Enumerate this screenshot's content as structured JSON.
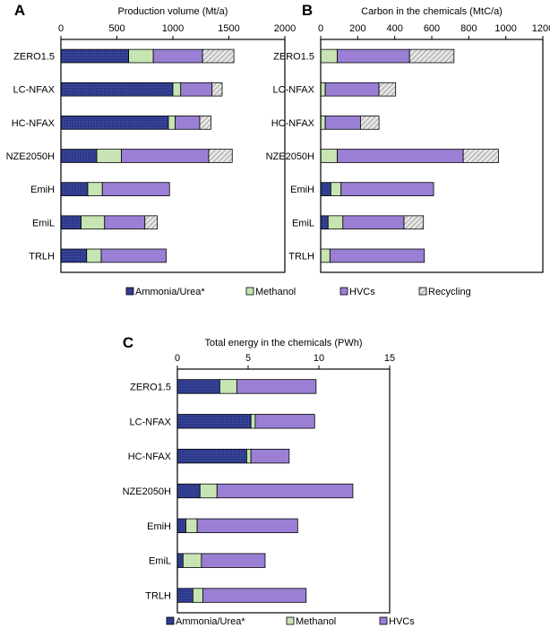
{
  "colors": {
    "ammonia": "#2e3a8c",
    "methanol": "#c6e5b3",
    "hvcs": "#9b7fd4",
    "recycling": "#d9d9d9"
  },
  "legend": [
    {
      "key": "ammonia",
      "label": "Ammonia/Urea*"
    },
    {
      "key": "methanol",
      "label": "Methanol"
    },
    {
      "key": "hvcs",
      "label": "HVCs"
    },
    {
      "key": "recycling",
      "label": "Recycling"
    }
  ],
  "chart_data": [
    {
      "panel": "A",
      "type": "bar",
      "orientation": "horizontal",
      "stacked": true,
      "title": "Production volume (Mt/a)",
      "xlim": [
        0,
        2000
      ],
      "xticks": [
        0,
        500,
        1000,
        1500,
        2000
      ],
      "categories": [
        "ZERO1.5",
        "LC-NFAX",
        "HC-NFAX",
        "NZE2050H",
        "EmiH",
        "EmiL",
        "TRLH"
      ],
      "series": [
        {
          "name": "Ammonia/Urea*",
          "key": "ammonia",
          "values": [
            605,
            1000,
            960,
            320,
            240,
            180,
            230
          ]
        },
        {
          "name": "Methanol",
          "key": "methanol",
          "values": [
            220,
            70,
            60,
            220,
            130,
            210,
            130
          ]
        },
        {
          "name": "HVCs",
          "key": "hvcs",
          "values": [
            440,
            280,
            220,
            780,
            600,
            360,
            580
          ]
        },
        {
          "name": "Recycling",
          "key": "recycling",
          "values": [
            280,
            90,
            100,
            210,
            0,
            110,
            0
          ]
        }
      ]
    },
    {
      "panel": "B",
      "type": "bar",
      "orientation": "horizontal",
      "stacked": true,
      "title": "Carbon in the chemicals (MtC/a)",
      "xlim": [
        0,
        1200
      ],
      "xticks": [
        0,
        200,
        400,
        600,
        800,
        1000,
        1200
      ],
      "categories": [
        "ZERO1.5",
        "LC-NFAX",
        "HC-NFAX",
        "NZE2050H",
        "EmiH",
        "EmiL",
        "TRLH"
      ],
      "series": [
        {
          "name": "Ammonia/Urea*",
          "key": "ammonia",
          "values": [
            0,
            0,
            0,
            0,
            55,
            40,
            0
          ]
        },
        {
          "name": "Methanol",
          "key": "methanol",
          "values": [
            90,
            25,
            25,
            90,
            55,
            80,
            50
          ]
        },
        {
          "name": "HVCs",
          "key": "hvcs",
          "values": [
            390,
            290,
            190,
            680,
            500,
            330,
            510
          ]
        },
        {
          "name": "Recycling",
          "key": "recycling",
          "values": [
            240,
            90,
            100,
            190,
            0,
            105,
            0
          ]
        }
      ]
    },
    {
      "panel": "C",
      "type": "bar",
      "orientation": "horizontal",
      "stacked": true,
      "title": "Total energy in the chemicals (PWh)",
      "xlim": [
        0,
        15
      ],
      "xticks": [
        0,
        5,
        10,
        15
      ],
      "categories": [
        "ZERO1.5",
        "LC-NFAX",
        "HC-NFAX",
        "NZE2050H",
        "EmiH",
        "EmiL",
        "TRLH"
      ],
      "series": [
        {
          "name": "Ammonia/Urea*",
          "key": "ammonia",
          "values": [
            3.0,
            5.2,
            4.9,
            1.6,
            0.6,
            0.4,
            1.1
          ]
        },
        {
          "name": "Methanol",
          "key": "methanol",
          "values": [
            1.2,
            0.3,
            0.3,
            1.2,
            0.8,
            1.3,
            0.7
          ]
        },
        {
          "name": "HVCs",
          "key": "hvcs",
          "values": [
            5.6,
            4.2,
            2.7,
            9.6,
            7.1,
            4.5,
            7.3
          ]
        }
      ]
    }
  ]
}
